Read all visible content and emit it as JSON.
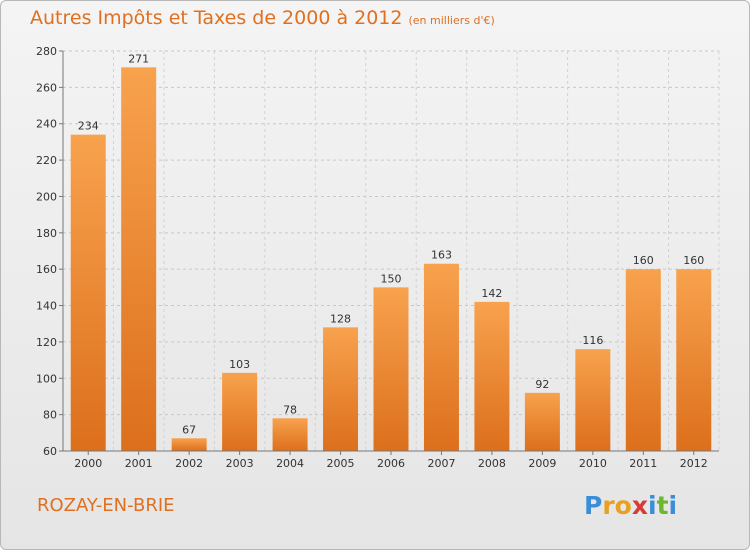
{
  "title": "Autres Impôts et Taxes de 2000 à 2012",
  "subtitle": "(en milliers d'€)",
  "commune": "ROZAY-EN-BRIE",
  "logo": {
    "letters": [
      "P",
      "r",
      "o",
      "x",
      "i",
      "t",
      "i"
    ],
    "colors": [
      "#3a8ed8",
      "#e9a020",
      "#e9a020",
      "#d83a3a",
      "#3a8ed8",
      "#6ab82e",
      "#3a8ed8"
    ]
  },
  "colors": {
    "accent": "#e07020",
    "bar_light": "#f8a24e",
    "bar_dark": "#dc6f1c"
  },
  "chart_data": {
    "type": "bar",
    "categories": [
      "2000",
      "2001",
      "2002",
      "2003",
      "2004",
      "2005",
      "2006",
      "2007",
      "2008",
      "2009",
      "2010",
      "2011",
      "2012"
    ],
    "values": [
      234,
      271,
      67,
      103,
      78,
      128,
      150,
      163,
      142,
      92,
      116,
      160,
      160
    ],
    "ylim": [
      60,
      280
    ],
    "yticks": [
      60,
      80,
      100,
      120,
      140,
      160,
      180,
      200,
      220,
      240,
      260,
      280
    ],
    "grid": true
  }
}
